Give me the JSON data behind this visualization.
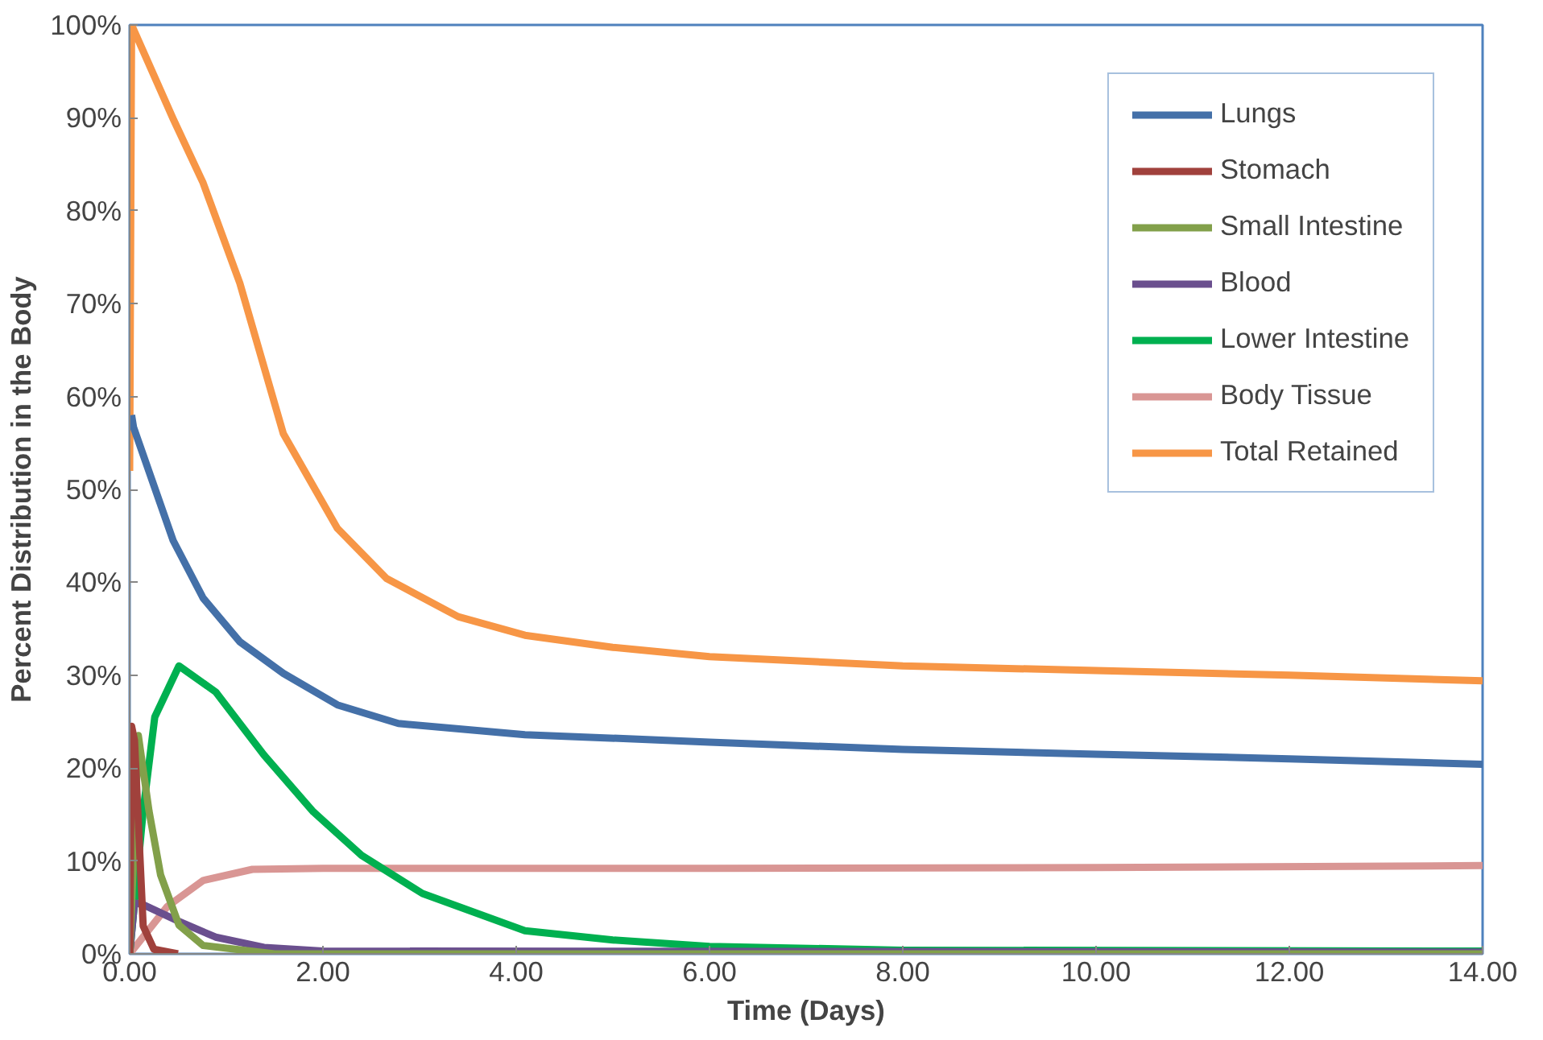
{
  "chart_data": {
    "type": "line",
    "xlabel": "Time (Days)",
    "ylabel": "Percent Distribution in the Body",
    "xlim": [
      0,
      14
    ],
    "ylim": [
      0,
      100
    ],
    "xticks": [
      {
        "value": 0,
        "label": "0.00"
      },
      {
        "value": 2,
        "label": "2.00"
      },
      {
        "value": 4,
        "label": "4.00"
      },
      {
        "value": 6,
        "label": "6.00"
      },
      {
        "value": 8,
        "label": "8.00"
      },
      {
        "value": 10,
        "label": "10.00"
      },
      {
        "value": 12,
        "label": "12.00"
      },
      {
        "value": 14,
        "label": "14.00"
      }
    ],
    "yticks": [
      {
        "value": 0,
        "label": "0%"
      },
      {
        "value": 10,
        "label": "10%"
      },
      {
        "value": 20,
        "label": "20%"
      },
      {
        "value": 30,
        "label": "30%"
      },
      {
        "value": 40,
        "label": "40%"
      },
      {
        "value": 50,
        "label": "50%"
      },
      {
        "value": 60,
        "label": "60%"
      },
      {
        "value": 70,
        "label": "70%"
      },
      {
        "value": 80,
        "label": "80%"
      },
      {
        "value": 90,
        "label": "90%"
      },
      {
        "value": 100,
        "label": "100%"
      }
    ],
    "grid": false,
    "legend": "top right",
    "marker": "none",
    "line_style": "solid",
    "series": [
      {
        "name": "Lungs",
        "color": "#4470a8",
        "x": [
          0.02,
          0.04,
          0.45,
          0.76,
          1.14,
          1.59,
          2.15,
          2.78,
          4.09,
          6,
          8,
          10,
          12,
          14
        ],
        "values": [
          58,
          56.7,
          44.5,
          38.3,
          33.6,
          30.2,
          26.8,
          24.8,
          23.6,
          22.8,
          22,
          21.5,
          21,
          20.4
        ]
      },
      {
        "name": "Stomach",
        "color": "#a0413c",
        "x": [
          0,
          0.02,
          0.05,
          0.14,
          0.25,
          0.5
        ],
        "values": [
          0,
          24.5,
          23,
          3,
          0.5,
          0
        ]
      },
      {
        "name": "Small Intestine",
        "color": "#82a04a",
        "x": [
          0,
          0.09,
          0.2,
          0.32,
          0.51,
          0.76,
          1.5,
          14
        ],
        "values": [
          0,
          23.5,
          15.4,
          8.5,
          3.1,
          0.9,
          0,
          0
        ]
      },
      {
        "name": "Blood",
        "color": "#6a4f8e",
        "x": [
          0,
          0.05,
          0.14,
          0.51,
          0.89,
          1.39,
          2,
          14
        ],
        "values": [
          0,
          5.5,
          5.3,
          3.5,
          1.8,
          0.7,
          0.3,
          0.2
        ]
      },
      {
        "name": "Lower Intestine",
        "color": "#00b050",
        "x": [
          0,
          0.14,
          0.26,
          0.51,
          0.89,
          1.39,
          1.9,
          2.4,
          3.03,
          4.09,
          5,
          6,
          8,
          14
        ],
        "values": [
          0,
          15.4,
          25.5,
          31,
          28.2,
          21.4,
          15.3,
          10.6,
          6.5,
          2.5,
          1.5,
          0.8,
          0.4,
          0.3
        ]
      },
      {
        "name": "Body Tissue",
        "color": "#d99694",
        "x": [
          0,
          0.39,
          0.76,
          1.27,
          2,
          6,
          10,
          14
        ],
        "values": [
          0,
          5.1,
          7.9,
          9.1,
          9.2,
          9.2,
          9.3,
          9.5
        ]
      },
      {
        "name": "Total Retained",
        "color": "#f79646",
        "x": [
          0,
          0.02,
          0.45,
          0.76,
          1.14,
          1.59,
          2.15,
          2.66,
          3.4,
          4.09,
          5,
          6,
          8,
          10,
          12,
          14
        ],
        "values": [
          52,
          100,
          89.9,
          83,
          72.2,
          56,
          45.8,
          40.4,
          36.3,
          34.3,
          33,
          32,
          31,
          30.5,
          30,
          29.4
        ]
      }
    ]
  }
}
